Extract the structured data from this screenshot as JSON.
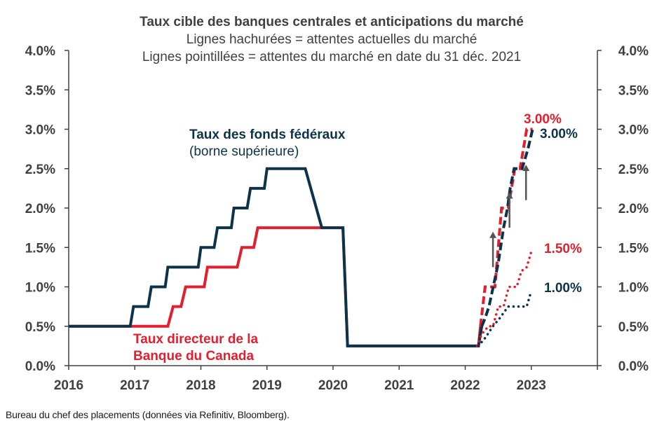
{
  "chart_data": {
    "type": "line",
    "title": "Taux cible des banques centrales et anticipations du marché",
    "subtitle_lines": [
      "Lignes hachurées = attentes actuelles du marché",
      "Lignes pointillées = attentes du marché en date du 31 déc. 2021"
    ],
    "xlim": [
      2016,
      2024
    ],
    "ylim": [
      0,
      4
    ],
    "x_ticks": [
      "2016",
      "2017",
      "2018",
      "2019",
      "2020",
      "2021",
      "2022",
      "2023"
    ],
    "x_tick_values": [
      2016,
      2017,
      2018,
      2019,
      2020,
      2021,
      2022,
      2023
    ],
    "y_ticks": [
      "0.0%",
      "0.5%",
      "1.0%",
      "1.5%",
      "2.0%",
      "2.5%",
      "3.0%",
      "3.5%",
      "4.0%"
    ],
    "y_tick_values": [
      0,
      0.5,
      1,
      1.5,
      2,
      2.5,
      3,
      3.5,
      4
    ],
    "colors": {
      "fed": "#0d3349",
      "boc": "#e21f2f",
      "axis": "#404040",
      "arrow": "#555555"
    },
    "series": [
      {
        "id": "fed",
        "name_line1": "Taux des fonds fédéraux",
        "name_line2": "(borne supérieure)",
        "style": "solid",
        "points": [
          [
            2016.0,
            0.5
          ],
          [
            2016.93,
            0.5
          ],
          [
            2016.98,
            0.75
          ],
          [
            2017.2,
            0.75
          ],
          [
            2017.25,
            1.0
          ],
          [
            2017.46,
            1.0
          ],
          [
            2017.5,
            1.25
          ],
          [
            2017.96,
            1.25
          ],
          [
            2018.0,
            1.5
          ],
          [
            2018.2,
            1.5
          ],
          [
            2018.25,
            1.75
          ],
          [
            2018.46,
            1.75
          ],
          [
            2018.5,
            2.0
          ],
          [
            2018.7,
            2.0
          ],
          [
            2018.75,
            2.25
          ],
          [
            2018.96,
            2.25
          ],
          [
            2019.0,
            2.5
          ],
          [
            2019.58,
            2.5
          ],
          [
            2019.83,
            1.75
          ],
          [
            2020.15,
            1.75
          ],
          [
            2020.22,
            0.25
          ],
          [
            2022.2,
            0.25
          ],
          [
            2022.25,
            0.5
          ]
        ]
      },
      {
        "id": "boc",
        "name_line1": "Taux directeur de la",
        "name_line2": "Banque du Canada",
        "style": "solid",
        "points": [
          [
            2016.0,
            0.5
          ],
          [
            2017.5,
            0.5
          ],
          [
            2017.58,
            0.75
          ],
          [
            2017.7,
            0.75
          ],
          [
            2017.77,
            1.0
          ],
          [
            2018.05,
            1.0
          ],
          [
            2018.1,
            1.25
          ],
          [
            2018.55,
            1.25
          ],
          [
            2018.62,
            1.5
          ],
          [
            2018.8,
            1.5
          ],
          [
            2018.86,
            1.75
          ],
          [
            2020.15,
            1.75
          ],
          [
            2020.22,
            0.25
          ],
          [
            2022.2,
            0.25
          ],
          [
            2022.23,
            0.5
          ]
        ]
      },
      {
        "id": "boc-current-expectations",
        "style": "dashed",
        "end_label": "3.00%",
        "points": [
          [
            2022.23,
            0.5
          ],
          [
            2022.3,
            1.0
          ],
          [
            2022.45,
            1.0
          ],
          [
            2022.55,
            2.0
          ],
          [
            2022.65,
            2.0
          ],
          [
            2022.75,
            2.5
          ],
          [
            2022.83,
            2.5
          ],
          [
            2022.93,
            3.0
          ],
          [
            2023.02,
            3.0
          ]
        ]
      },
      {
        "id": "fed-current-expectations",
        "style": "dashed",
        "end_label": "3.00%",
        "points": [
          [
            2022.25,
            0.5
          ],
          [
            2022.3,
            0.6
          ],
          [
            2022.36,
            0.75
          ],
          [
            2022.5,
            1.3
          ],
          [
            2022.58,
            1.75
          ],
          [
            2022.64,
            2.0
          ],
          [
            2022.68,
            2.25
          ],
          [
            2022.74,
            2.5
          ],
          [
            2022.86,
            2.5
          ],
          [
            2022.95,
            2.75
          ],
          [
            2023.02,
            3.0
          ]
        ]
      },
      {
        "id": "boc-dec2021-expectations",
        "style": "dotted",
        "end_label": "1.50%",
        "points": [
          [
            2022.18,
            0.25
          ],
          [
            2022.25,
            0.4
          ],
          [
            2022.35,
            0.5
          ],
          [
            2022.42,
            0.5
          ],
          [
            2022.5,
            0.75
          ],
          [
            2022.58,
            0.75
          ],
          [
            2022.66,
            1.0
          ],
          [
            2022.78,
            1.0
          ],
          [
            2022.85,
            1.2
          ],
          [
            2022.93,
            1.25
          ],
          [
            2023.0,
            1.45
          ]
        ]
      },
      {
        "id": "fed-dec2021-expectations",
        "style": "dotted",
        "end_label": "1.00%",
        "points": [
          [
            2022.2,
            0.25
          ],
          [
            2022.3,
            0.35
          ],
          [
            2022.42,
            0.5
          ],
          [
            2022.52,
            0.6
          ],
          [
            2022.65,
            0.75
          ],
          [
            2022.93,
            0.75
          ],
          [
            2023.0,
            0.95
          ]
        ]
      }
    ],
    "arrows": [
      {
        "x": 2022.42,
        "y_from": 1.25,
        "y_to": 1.7
      },
      {
        "x": 2022.67,
        "y_from": 1.75,
        "y_to": 2.2
      },
      {
        "x": 2022.92,
        "y_from": 2.1,
        "y_to": 2.55
      }
    ],
    "legend": "inline labels"
  },
  "source": "Bureau du chef des placements (données via Refinitiv, Bloomberg)."
}
